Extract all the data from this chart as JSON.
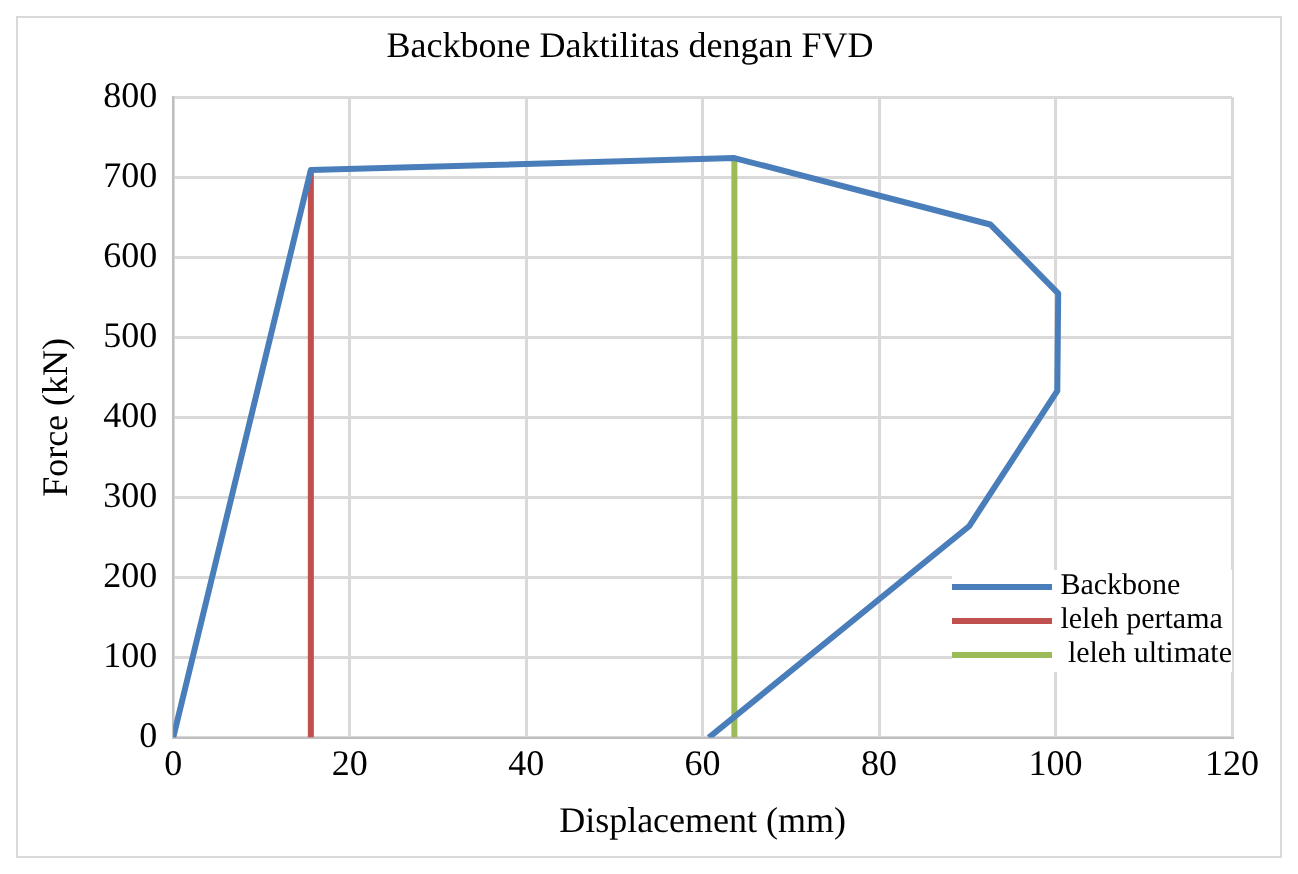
{
  "chart_data": {
    "type": "line",
    "title": "Backbone Daktilitas dengan FVD",
    "xlabel": "Displacement (mm)",
    "ylabel": "Force (kN)",
    "xlim": [
      0,
      120
    ],
    "xticks": [
      0,
      20,
      40,
      60,
      80,
      100,
      120
    ],
    "ylim": [
      0,
      800
    ],
    "yticks": [
      0,
      100,
      200,
      300,
      400,
      500,
      600,
      700,
      800
    ],
    "grid": true,
    "legend": "bottom right",
    "marker": "none",
    "line_style": "solid",
    "series": [
      {
        "name": "Backbone",
        "color": "#4a7ebb",
        "x": [
          0,
          15.6,
          63.6,
          92.6,
          100.3,
          100.2,
          90.2,
          60.7
        ],
        "values": [
          0,
          709,
          724,
          641,
          555,
          433,
          264,
          0
        ]
      },
      {
        "name": "leleh pertama",
        "color": "#c0504d",
        "x": [
          15.6,
          15.6
        ],
        "values": [
          0,
          709
        ]
      },
      {
        "name": " leleh ultimate",
        "color": "#9bbb59",
        "x": [
          63.6,
          63.6
        ],
        "values": [
          0,
          724
        ]
      }
    ]
  }
}
